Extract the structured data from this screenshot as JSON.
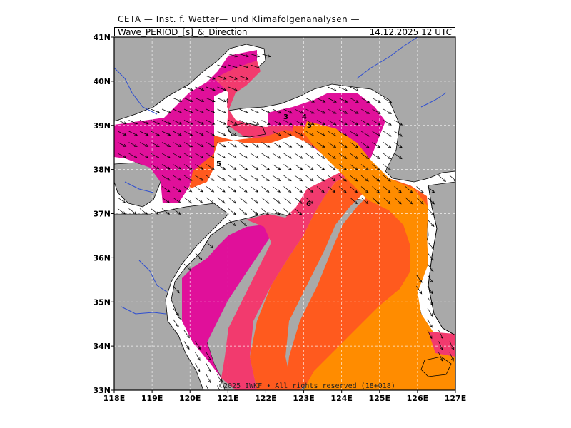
{
  "header": {
    "title": "CETA — Inst. f. Wetter— und Klimafolgenanalysen —",
    "parameter": "Wave_PERIOD_[s]_&_Direction",
    "valid_time": "14.12.2025 12 UTC"
  },
  "map": {
    "region": "Yellow Sea / Bohai",
    "lon_range": [
      118,
      127
    ],
    "lat_range": [
      33,
      41
    ],
    "lon_ticks": [
      "118E",
      "119E",
      "120E",
      "121E",
      "122E",
      "123E",
      "124E",
      "125E",
      "126E",
      "127E"
    ],
    "lat_ticks": [
      "33N",
      "34N",
      "35N",
      "36N",
      "37N",
      "38N",
      "39N",
      "40N",
      "41N"
    ],
    "contour_labels": [
      "3",
      "4",
      "5",
      "5",
      "6"
    ],
    "credit": "©2025 IWKF • All rights reserved (18+018)",
    "colors": {
      "land": "#a9a9a9",
      "period_3_4": "#e0109a",
      "period_4_5": "#f23a6e",
      "period_5_6": "#ff5a1e",
      "period_6_plus": "#ff8c00",
      "rivers": "#2f4fd0",
      "coast": "#000000",
      "arrows": "#000000"
    },
    "wave_direction": "from NW toward SE (arrows point east to south-east)"
  }
}
